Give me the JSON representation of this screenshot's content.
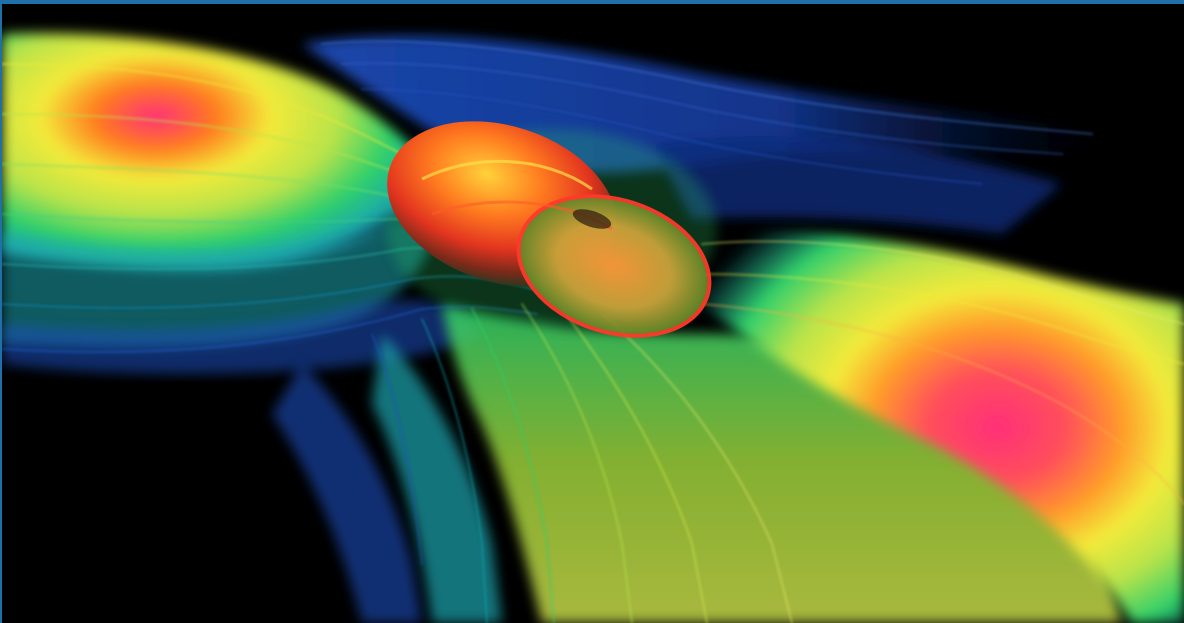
{
  "image": {
    "alt": "",
    "frame_color": "#1f6fa8",
    "background_color": "#000000",
    "palette": {
      "hot": "#ff2f7a",
      "orange": "#ff7a1f",
      "yellow": "#f3ea3a",
      "lime": "#b8e34a",
      "green": "#2fd06a",
      "teal": "#1aa6b0",
      "blue": "#1d4fbf",
      "deep_blue": "#0b1f5a"
    }
  }
}
